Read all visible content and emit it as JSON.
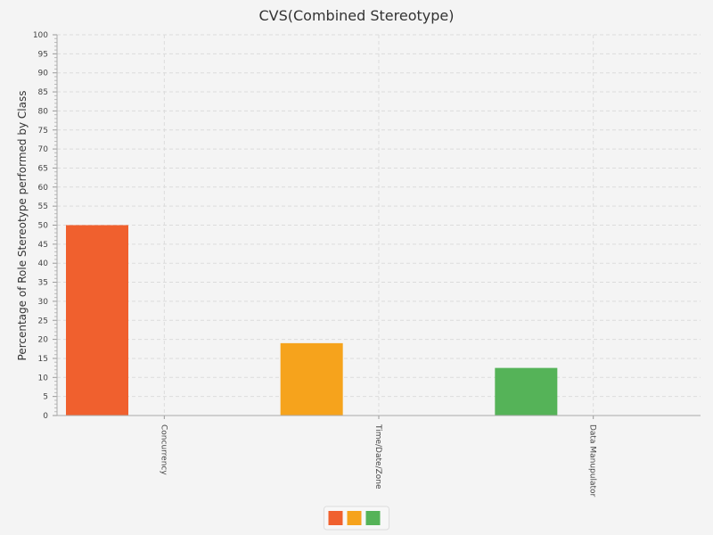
{
  "chart_data": {
    "type": "bar",
    "title": "CVS(Combined Stereotype)",
    "xlabel": "",
    "ylabel": "Percentage of Role Stereotype performed by Class",
    "categories": [
      "Concurrency",
      "Time/Date/Zone",
      "Data Manupulator"
    ],
    "series": [
      {
        "values": [
          50,
          19,
          12.5
        ]
      }
    ],
    "bar_colors": [
      "#f0602e",
      "#f6a31c",
      "#55b358"
    ],
    "ylim": [
      0,
      100
    ],
    "yticks": [
      "0",
      "5",
      "10",
      "15",
      "20",
      "25",
      "30",
      "35",
      "40",
      "45",
      "50",
      "55",
      "60",
      "65",
      "70",
      "75",
      "80",
      "85",
      "90",
      "95",
      "100"
    ],
    "grid": true,
    "legend": {
      "position": "bottom-center",
      "swatches": [
        "#f0602e",
        "#f6a31c",
        "#55b358"
      ]
    }
  }
}
